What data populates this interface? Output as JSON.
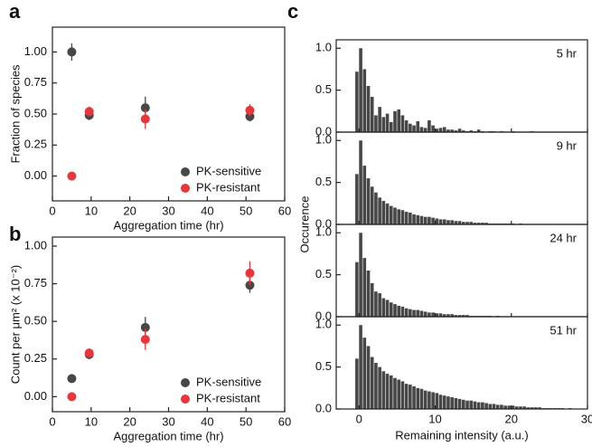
{
  "chart_data": [
    {
      "type": "scatter",
      "panel": "a",
      "x_label": "Aggregation time (hr)",
      "y_label": "Fraction of species",
      "x": [
        5,
        9.5,
        24,
        51
      ],
      "series": [
        {
          "name": "PK-sensitive",
          "color": "#474747",
          "values": [
            1.0,
            0.49,
            0.55,
            0.48
          ],
          "errors": [
            0.07,
            0.04,
            0.09,
            0.04
          ]
        },
        {
          "name": "PK-resistant",
          "color": "#e8363a",
          "values": [
            0.0,
            0.52,
            0.46,
            0.53
          ],
          "errors": [
            0.0,
            0.04,
            0.08,
            0.05
          ]
        }
      ],
      "xlim": [
        0,
        60
      ],
      "xticks": [
        0,
        10,
        20,
        30,
        40,
        50,
        60
      ],
      "ylim": [
        -0.2,
        1.2
      ],
      "yticks": [
        {
          "value": 0,
          "label": "0.00"
        },
        {
          "value": 0.25,
          "label": "0.25"
        },
        {
          "value": 0.5,
          "label": "0.50"
        },
        {
          "value": 0.75,
          "label": "0.75"
        },
        {
          "value": 1,
          "label": "1.00"
        }
      ],
      "legend": "lower right"
    },
    {
      "type": "scatter",
      "panel": "b",
      "x_label": "Aggregation time (hr)",
      "y_label": "Count per μm² (x 10⁻²)",
      "x": [
        5,
        9.5,
        24,
        51
      ],
      "series": [
        {
          "name": "PK-sensitive",
          "color": "#474747",
          "values": [
            0.12,
            0.28,
            0.46,
            0.74
          ],
          "errors": [
            0.0,
            0.03,
            0.07,
            0.05
          ]
        },
        {
          "name": "PK-resistant",
          "color": "#e8363a",
          "values": [
            0.0,
            0.29,
            0.38,
            0.82
          ],
          "errors": [
            0.0,
            0.03,
            0.07,
            0.08
          ]
        }
      ],
      "xlim": [
        0,
        60
      ],
      "xticks": [
        0,
        10,
        20,
        30,
        40,
        50,
        60
      ],
      "ylim": [
        -0.1,
        1.06
      ],
      "yticks": [
        {
          "value": 0,
          "label": "0.00"
        },
        {
          "value": 0.25,
          "label": "0.25"
        },
        {
          "value": 0.5,
          "label": "0.50"
        },
        {
          "value": 0.75,
          "label": "0.75"
        },
        {
          "value": 1,
          "label": "1.00"
        }
      ],
      "legend": "lower right"
    },
    {
      "type": "histogram",
      "panel": "c",
      "x_label": "Remaining intensity (a.u.)",
      "y_label": "Occurence",
      "color": "#474747",
      "bins": [
        -0.5,
        0,
        0.5,
        1,
        1.5,
        2,
        2.5,
        3,
        3.5,
        4,
        4.5,
        5,
        5.5,
        6,
        6.5,
        7,
        7.5,
        8,
        8.5,
        9,
        9.5,
        10,
        10.5,
        11,
        11.5,
        12,
        12.5,
        13,
        13.5,
        14,
        14.5,
        15,
        15.5,
        16,
        16.5,
        17,
        17.5,
        18,
        18.5,
        19,
        19.5,
        20,
        20.5,
        21,
        21.5,
        22,
        22.5,
        23,
        23.5,
        24,
        24.5,
        25,
        25.5,
        26,
        26.5,
        27,
        27.5,
        28,
        28.5,
        29,
        29.5
      ],
      "series": [
        {
          "name": "5 hr",
          "values": [
            0.72,
            1.0,
            0.75,
            0.55,
            0.42,
            0.2,
            0.3,
            0.18,
            0.22,
            0.12,
            0.25,
            0.27,
            0.2,
            0.14,
            0.1,
            0.08,
            0.13,
            0.06,
            0.05,
            0.14,
            0.08,
            0.04,
            0.05,
            0.06,
            0.03,
            0.03,
            0.02,
            0.04,
            0.02,
            0.01,
            0.02,
            0.01,
            0.03,
            0.01,
            0,
            0.01,
            0.01,
            0,
            0.01,
            0,
            0,
            0.01,
            0,
            0,
            0,
            0,
            0.01,
            0,
            0,
            0,
            0,
            0,
            0,
            0,
            0,
            0,
            0,
            0,
            0,
            0
          ]
        },
        {
          "name": "9 hr",
          "values": [
            0.6,
            1.0,
            0.7,
            0.55,
            0.45,
            0.38,
            0.32,
            0.28,
            0.25,
            0.22,
            0.2,
            0.18,
            0.17,
            0.15,
            0.14,
            0.12,
            0.11,
            0.1,
            0.09,
            0.09,
            0.08,
            0.07,
            0.06,
            0.06,
            0.05,
            0.05,
            0.04,
            0.04,
            0.03,
            0.03,
            0.03,
            0.02,
            0.02,
            0.02,
            0.02,
            0.01,
            0.01,
            0.01,
            0.01,
            0.01,
            0.01,
            0.01,
            0,
            0.01,
            0,
            0,
            0,
            0,
            0,
            0,
            0,
            0,
            0,
            0,
            0,
            0,
            0,
            0,
            0,
            0
          ]
        },
        {
          "name": "24 hr",
          "values": [
            0.65,
            1.0,
            0.7,
            0.55,
            0.4,
            0.3,
            0.28,
            0.22,
            0.2,
            0.17,
            0.15,
            0.13,
            0.12,
            0.1,
            0.09,
            0.08,
            0.08,
            0.07,
            0.06,
            0.05,
            0.05,
            0.04,
            0.04,
            0.03,
            0.03,
            0.03,
            0.02,
            0.02,
            0.02,
            0.02,
            0.01,
            0.01,
            0.01,
            0.01,
            0.01,
            0.01,
            0,
            0.01,
            0,
            0,
            0,
            0,
            0,
            0,
            0,
            0,
            0,
            0,
            0,
            0,
            0,
            0,
            0,
            0,
            0,
            0,
            0,
            0,
            0,
            0
          ]
        },
        {
          "name": "51 hr",
          "values": [
            0.6,
            1.0,
            0.85,
            0.75,
            0.62,
            0.55,
            0.5,
            0.45,
            0.42,
            0.4,
            0.37,
            0.35,
            0.33,
            0.3,
            0.29,
            0.27,
            0.25,
            0.24,
            0.22,
            0.21,
            0.2,
            0.19,
            0.17,
            0.16,
            0.15,
            0.14,
            0.13,
            0.12,
            0.11,
            0.1,
            0.1,
            0.09,
            0.08,
            0.08,
            0.07,
            0.06,
            0.06,
            0.05,
            0.05,
            0.04,
            0.04,
            0.04,
            0.03,
            0.03,
            0.03,
            0.02,
            0.02,
            0.02,
            0.02,
            0.01,
            0.01,
            0.01,
            0.01,
            0.01,
            0.01,
            0,
            0.01,
            0,
            0,
            0
          ]
        }
      ],
      "xlim": [
        -3,
        30
      ],
      "xticks": [
        0,
        10,
        20,
        30
      ],
      "ylim": [
        0,
        1.1
      ],
      "yticks": [
        {
          "value": 0,
          "label": "0.0"
        },
        {
          "value": 0.5,
          "label": "0.5"
        },
        {
          "value": 1,
          "label": "1.0"
        }
      ]
    }
  ]
}
